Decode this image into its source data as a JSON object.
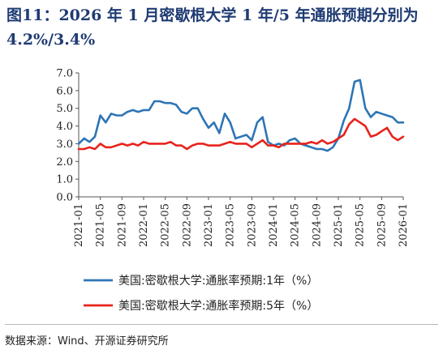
{
  "title": "图11：2026 年 1 月密歇根大学 1 年/5 年通胀预期分别为 4.2%/3.4%",
  "source": "数据来源：Wind、开源证券研究所",
  "chart_data": {
    "type": "line",
    "title": "",
    "xlabel": "",
    "ylabel": "",
    "ylim": [
      0,
      7
    ],
    "yticks": [
      "0.0",
      "1.0",
      "2.0",
      "3.0",
      "4.0",
      "5.0",
      "6.0",
      "7.0"
    ],
    "x_tick_labels": [
      "2021-01",
      "2021-05",
      "2021-09",
      "2022-01",
      "2022-05",
      "2022-09",
      "2023-01",
      "2023-05",
      "2023-09",
      "2024-01",
      "2024-05",
      "2024-09",
      "2025-01",
      "2025-05",
      "2025-09",
      "2026-01"
    ],
    "x_start": "2021-01",
    "x_end": "2026-01",
    "grid": false,
    "legend_position": "bottom",
    "series": [
      {
        "name": "美国:密歇根大学:通胀率预期:1年（%）",
        "color": "#2e75b6",
        "values": [
          3.0,
          3.3,
          3.1,
          3.4,
          4.6,
          4.2,
          4.7,
          4.6,
          4.6,
          4.8,
          4.9,
          4.8,
          4.9,
          4.9,
          5.4,
          5.4,
          5.3,
          5.3,
          5.2,
          4.8,
          4.7,
          5.0,
          5.0,
          4.4,
          3.9,
          4.2,
          3.6,
          4.7,
          4.2,
          3.3,
          3.4,
          3.5,
          3.2,
          4.2,
          4.5,
          3.1,
          2.9,
          3.0,
          2.9,
          3.2,
          3.3,
          3.0,
          2.9,
          2.8,
          2.7,
          2.7,
          2.6,
          2.8,
          3.3,
          4.3,
          5.0,
          6.5,
          6.6,
          5.0,
          4.5,
          4.8,
          4.7,
          4.6,
          4.5,
          4.2,
          4.2
        ]
      },
      {
        "name": "美国:密歇根大学:通胀率预期:5年（%）",
        "color": "#e8231c",
        "values": [
          2.7,
          2.7,
          2.8,
          2.7,
          3.0,
          2.8,
          2.8,
          2.9,
          3.0,
          2.9,
          3.0,
          2.9,
          3.1,
          3.0,
          3.0,
          3.0,
          3.0,
          3.1,
          2.9,
          2.9,
          2.7,
          2.9,
          3.0,
          3.0,
          2.9,
          2.9,
          2.9,
          3.0,
          3.1,
          3.0,
          3.0,
          3.0,
          2.8,
          3.0,
          3.2,
          2.9,
          2.9,
          2.8,
          3.0,
          3.0,
          3.0,
          3.0,
          3.0,
          3.1,
          3.0,
          3.2,
          3.0,
          3.1,
          3.3,
          3.5,
          4.1,
          4.4,
          4.2,
          4.0,
          3.4,
          3.5,
          3.7,
          3.9,
          3.4,
          3.2,
          3.4
        ]
      }
    ]
  }
}
